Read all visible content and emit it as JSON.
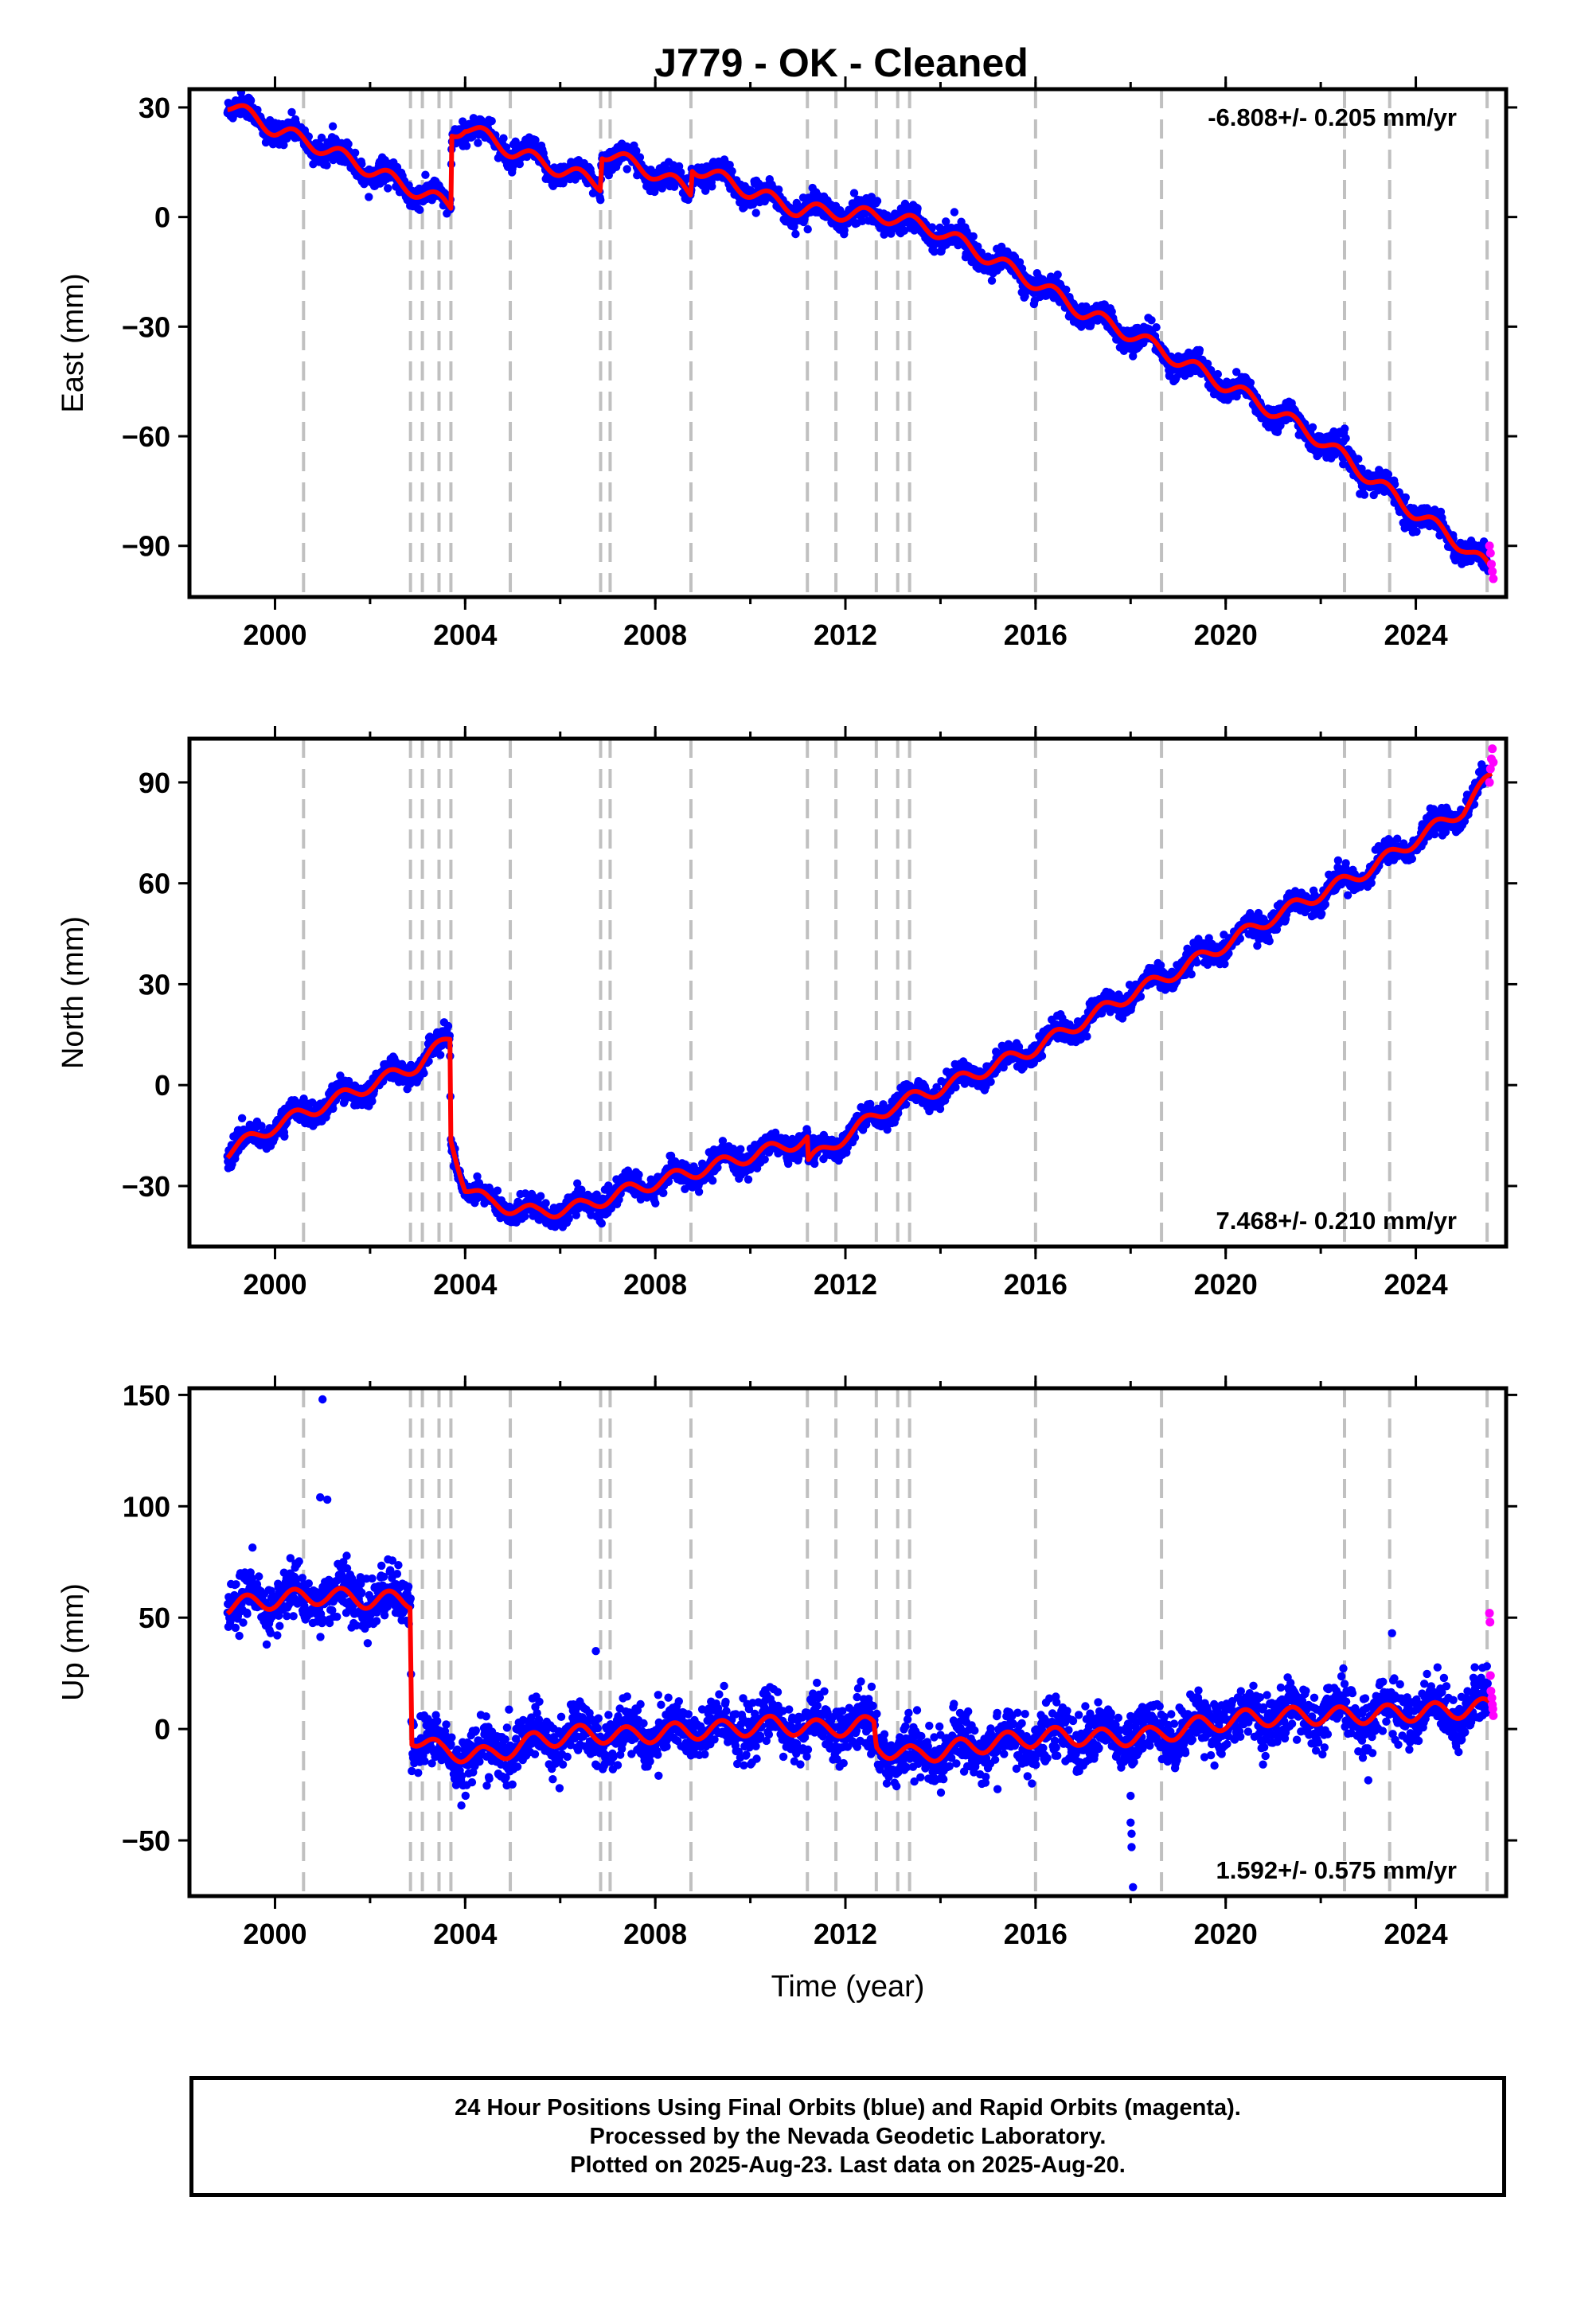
{
  "title": "J779  - OK - Cleaned",
  "colors": {
    "final": "#0000ff",
    "rapid": "#ff00ff",
    "model": "#ff0000",
    "steps": "#c0c0c0"
  },
  "footer": {
    "line1": "24 Hour Positions Using Final Orbits (blue) and Rapid Orbits (magenta).",
    "line2": "Processed by the Nevada Geodetic Laboratory.",
    "line3": "Plotted on 2025-Aug-23. Last data on 2025-Aug-20."
  },
  "chart_data": [
    {
      "type": "scatter",
      "component": "east",
      "ylabel": "East (mm)",
      "xlabel": "",
      "xlim": [
        1998.2,
        2025.9
      ],
      "ylim": [
        -104,
        35
      ],
      "yticks": [
        30,
        0,
        -30,
        -60,
        -90
      ],
      "xticks": [
        2000,
        2004,
        2008,
        2012,
        2016,
        2020,
        2024
      ],
      "rate_label": "-6.808+/- 0.205 mm/yr",
      "rate_position": "top-right",
      "step_epochs": [
        2000.6,
        2002.85,
        2003.1,
        2003.45,
        2003.7,
        2004.95,
        2006.85,
        2007.05,
        2008.75,
        2011.2,
        2011.8,
        2012.65,
        2013.1,
        2013.35,
        2016.0,
        2018.65,
        2022.5,
        2023.45,
        2025.5
      ],
      "model_nodes": [
        [
          1999.0,
          31
        ],
        [
          2000.0,
          24
        ],
        [
          2001.0,
          19
        ],
        [
          2002.0,
          13
        ],
        [
          2003.0,
          7
        ],
        [
          2003.7,
          3
        ],
        [
          2003.72,
          23
        ],
        [
          2004.0,
          25
        ],
        [
          2005.0,
          18
        ],
        [
          2006.0,
          13
        ],
        [
          2006.85,
          9
        ],
        [
          2006.87,
          18
        ],
        [
          2008.0,
          12
        ],
        [
          2008.75,
          7
        ],
        [
          2008.77,
          14
        ],
        [
          2010.0,
          7
        ],
        [
          2011.0,
          2
        ],
        [
          2012.0,
          1
        ],
        [
          2013.0,
          0
        ],
        [
          2014.0,
          -4
        ],
        [
          2015.0,
          -11
        ],
        [
          2016.0,
          -18
        ],
        [
          2017.0,
          -26
        ],
        [
          2018.0,
          -32
        ],
        [
          2019.0,
          -39
        ],
        [
          2020.0,
          -46
        ],
        [
          2021.0,
          -53
        ],
        [
          2022.0,
          -61
        ],
        [
          2023.0,
          -71
        ],
        [
          2024.0,
          -81
        ],
        [
          2025.0,
          -90
        ],
        [
          2025.6,
          -97
        ]
      ],
      "seasonal_amplitude": 2.5,
      "scatter_sigma": 1.6,
      "rapid_points": [
        [
          2025.55,
          -90
        ],
        [
          2025.57,
          -92
        ],
        [
          2025.59,
          -95
        ],
        [
          2025.61,
          -97
        ],
        [
          2025.63,
          -99
        ]
      ]
    },
    {
      "type": "scatter",
      "component": "north",
      "ylabel": "North (mm)",
      "xlabel": "",
      "xlim": [
        1998.2,
        2025.9
      ],
      "ylim": [
        -48,
        103
      ],
      "yticks": [
        90,
        60,
        30,
        0,
        -30
      ],
      "xticks": [
        2000,
        2004,
        2008,
        2012,
        2016,
        2020,
        2024
      ],
      "rate_label": "7.468+/- 0.210 mm/yr",
      "rate_position": "bottom-right",
      "step_epochs": [
        2000.6,
        2002.85,
        2003.1,
        2003.45,
        2003.7,
        2004.95,
        2006.85,
        2007.05,
        2008.75,
        2011.2,
        2011.8,
        2012.65,
        2013.1,
        2013.35,
        2016.0,
        2018.65,
        2022.5,
        2023.45,
        2025.5
      ],
      "model_nodes": [
        [
          1999.0,
          -20
        ],
        [
          2000.0,
          -12
        ],
        [
          2001.0,
          -6
        ],
        [
          2002.0,
          0
        ],
        [
          2003.0,
          6
        ],
        [
          2003.68,
          14
        ],
        [
          2003.7,
          -16
        ],
        [
          2004.0,
          -30
        ],
        [
          2004.5,
          -35
        ],
        [
          2005.5,
          -38
        ],
        [
          2006.5,
          -36
        ],
        [
          2007.5,
          -31
        ],
        [
          2008.5,
          -27
        ],
        [
          2009.5,
          -23
        ],
        [
          2010.5,
          -19
        ],
        [
          2011.2,
          -16
        ],
        [
          2011.22,
          -23
        ],
        [
          2012.0,
          -15
        ],
        [
          2013.0,
          -6
        ],
        [
          2014.0,
          -1
        ],
        [
          2015.0,
          5
        ],
        [
          2016.0,
          11
        ],
        [
          2017.0,
          19
        ],
        [
          2018.0,
          27
        ],
        [
          2019.0,
          34
        ],
        [
          2020.0,
          42
        ],
        [
          2021.0,
          50
        ],
        [
          2022.0,
          57
        ],
        [
          2023.0,
          64
        ],
        [
          2024.0,
          73
        ],
        [
          2025.0,
          82
        ],
        [
          2025.6,
          92
        ]
      ],
      "seasonal_amplitude": 2.5,
      "scatter_sigma": 1.7,
      "rapid_points": [
        [
          2025.55,
          90
        ],
        [
          2025.57,
          94
        ],
        [
          2025.59,
          97
        ],
        [
          2025.61,
          100
        ],
        [
          2025.63,
          96
        ]
      ]
    },
    {
      "type": "scatter",
      "component": "up",
      "ylabel": "Up (mm)",
      "xlabel": "Time (year)",
      "xlim": [
        1998.2,
        2025.9
      ],
      "ylim": [
        -75,
        153
      ],
      "yticks": [
        150,
        100,
        50,
        0,
        -50
      ],
      "xticks": [
        2000,
        2004,
        2008,
        2012,
        2016,
        2020,
        2024
      ],
      "rate_label": "1.592+/- 0.575 mm/yr",
      "rate_position": "bottom-right",
      "step_epochs": [
        2000.6,
        2002.85,
        2003.1,
        2003.45,
        2003.7,
        2004.95,
        2006.85,
        2007.05,
        2008.75,
        2011.2,
        2011.8,
        2012.65,
        2013.1,
        2013.35,
        2016.0,
        2018.65,
        2022.5,
        2023.45,
        2025.5
      ],
      "model_nodes": [
        [
          1999.0,
          55
        ],
        [
          2000.0,
          58
        ],
        [
          2001.0,
          60
        ],
        [
          2002.0,
          58
        ],
        [
          2002.85,
          58
        ],
        [
          2002.87,
          -3
        ],
        [
          2003.5,
          -10
        ],
        [
          2004.5,
          -12
        ],
        [
          2005.5,
          -5
        ],
        [
          2006.5,
          -2
        ],
        [
          2007.5,
          -3
        ],
        [
          2008.5,
          -1
        ],
        [
          2009.5,
          0
        ],
        [
          2010.5,
          2
        ],
        [
          2011.5,
          0
        ],
        [
          2012.6,
          2
        ],
        [
          2012.65,
          -8
        ],
        [
          2013.5,
          -12
        ],
        [
          2014.5,
          -8
        ],
        [
          2015.5,
          -5
        ],
        [
          2016.5,
          -3
        ],
        [
          2017.5,
          -4
        ],
        [
          2018.5,
          -3
        ],
        [
          2019.5,
          2
        ],
        [
          2020.5,
          5
        ],
        [
          2021.5,
          6
        ],
        [
          2022.5,
          6
        ],
        [
          2023.5,
          7
        ],
        [
          2024.5,
          8
        ],
        [
          2025.6,
          10
        ]
      ],
      "seasonal_amplitude": 5,
      "scatter_sigma": 6,
      "rapid_points": [
        [
          2025.55,
          52
        ],
        [
          2025.56,
          48
        ],
        [
          2025.57,
          24
        ],
        [
          2025.58,
          17
        ],
        [
          2025.6,
          14
        ],
        [
          2025.61,
          11
        ],
        [
          2025.62,
          9
        ],
        [
          2025.63,
          6
        ]
      ],
      "outliers": [
        [
          2001.0,
          148
        ],
        [
          2000.95,
          104
        ],
        [
          2001.1,
          103
        ],
        [
          2006.75,
          35
        ],
        [
          2018.0,
          -30
        ],
        [
          2018.0,
          -42
        ],
        [
          2018.02,
          -47
        ],
        [
          2018.02,
          -53
        ],
        [
          2018.05,
          -71
        ],
        [
          2023.5,
          43
        ],
        [
          2023.0,
          -23
        ],
        [
          2015.2,
          -27
        ]
      ]
    }
  ]
}
